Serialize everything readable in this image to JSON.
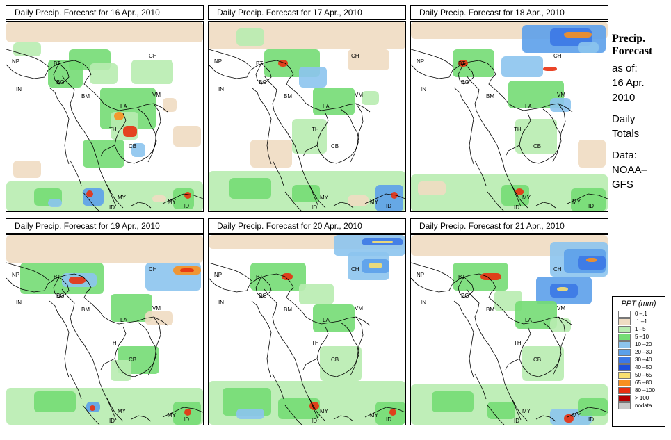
{
  "panels": [
    {
      "title": "Daily Precip. Forecast for  16 Apr., 2010"
    },
    {
      "title": "Daily Precip. Forecast for  17 Apr., 2010"
    },
    {
      "title": "Daily Precip. Forecast for  18 Apr., 2010"
    },
    {
      "title": "Daily Precip. Forecast for  19 Apr., 2010"
    },
    {
      "title": "Daily Precip. Forecast for  20 Apr., 2010"
    },
    {
      "title": "Daily Precip. Forecast for  21 Apr., 2010"
    }
  ],
  "map_labels": {
    "np": "NP",
    "bt": "BT",
    "in": "IN",
    "bg": "BG",
    "ch": "CH",
    "bm": "BM",
    "vm": "VM",
    "la": "LA",
    "th": "TH",
    "cb": "CB",
    "my": "MY",
    "id": "ID"
  },
  "side": {
    "heading_line1": "Precip.",
    "heading_line2": "Forecast",
    "line1": "as of:",
    "line2": "16 Apr.",
    "line3": "2010",
    "line4": "Daily",
    "line5": "Totals",
    "line6": "Data:",
    "line7": "NOAA–",
    "line8": "GFS"
  },
  "legend": {
    "title": "PPT (mm)",
    "items": [
      {
        "label": "0 –.1",
        "color": "#ffffff"
      },
      {
        "label": ".1 –1",
        "color": "#f0dcc2"
      },
      {
        "label": "1 –5",
        "color": "#b8ecb0"
      },
      {
        "label": "5 –10",
        "color": "#74dc74"
      },
      {
        "label": "10 –20",
        "color": "#8cc4ee"
      },
      {
        "label": "20 –30",
        "color": "#5ca0ea"
      },
      {
        "label": "30 –40",
        "color": "#3c78e6"
      },
      {
        "label": "40 –50",
        "color": "#1e50dc"
      },
      {
        "label": "50 –65",
        "color": "#f8e070"
      },
      {
        "label": "65 –80",
        "color": "#f89020"
      },
      {
        "label": "80 –100",
        "color": "#e83010"
      },
      {
        "label": "> 100",
        "color": "#b40000"
      },
      {
        "label": "nodata",
        "color": "#c8c8c8"
      }
    ]
  },
  "colors": {
    "tan": "#f0dcc2",
    "lightgreen": "#b8ecb0",
    "green": "#74dc74",
    "lightblue": "#8cc4ee",
    "blue": "#5ca0ea",
    "darkblue": "#3c78e6",
    "yellow": "#f8e070",
    "orange": "#f89020",
    "red": "#e83010"
  }
}
